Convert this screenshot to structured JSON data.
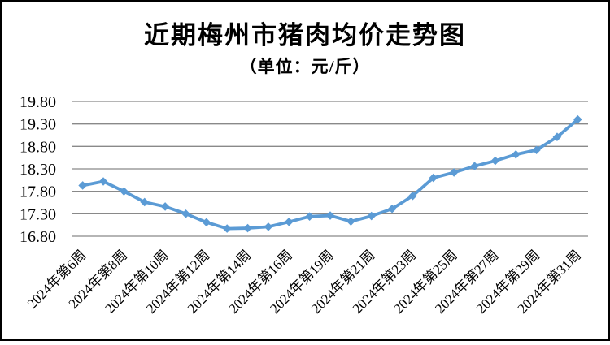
{
  "header": {
    "title": "近期梅州市猪肉均价走势图",
    "subtitle": "（单位：元/斤）"
  },
  "chart_data": {
    "type": "line",
    "title": "近期梅州市猪肉均价走势图",
    "subtitle": "（单位：元/斤）",
    "unit_label": "元/斤",
    "x_tick_labels": [
      "2024年第6周",
      "2024年第8周",
      "2024年第10周",
      "2024年第12周",
      "2024年第14周",
      "2024年第16周",
      "2024年第19周",
      "2024年第21周",
      "2024年第23周",
      "2024年第25周",
      "2024年第27周",
      "2024年第29周",
      "2024年第31周"
    ],
    "x_tick_every": 2,
    "series": [
      {
        "name": "猪肉均价",
        "color": "#5b9bd5",
        "marker": "diamond",
        "values": [
          17.93,
          18.02,
          17.8,
          17.56,
          17.46,
          17.3,
          17.11,
          16.97,
          16.98,
          17.01,
          17.12,
          17.24,
          17.26,
          17.13,
          17.25,
          17.41,
          17.7,
          18.1,
          18.22,
          18.36,
          18.48,
          18.62,
          18.72,
          19.01,
          19.4
        ]
      }
    ],
    "y_ticks": [
      19.8,
      19.3,
      18.8,
      18.3,
      17.8,
      17.3,
      16.8
    ],
    "y_tick_labels": [
      "19.80",
      "19.30",
      "18.80",
      "18.30",
      "17.80",
      "17.30",
      "16.80"
    ],
    "ylim": [
      16.8,
      19.8
    ],
    "grid": "horizontal",
    "gridline_color": "#898989",
    "text_color": "#000000",
    "legend": "none"
  }
}
